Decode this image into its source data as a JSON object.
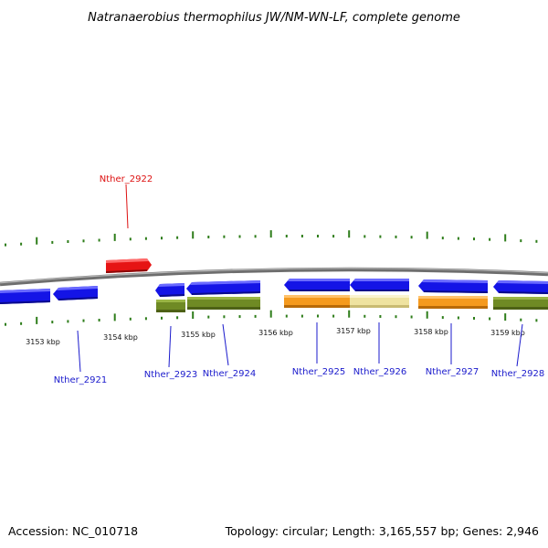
{
  "title": "Natranaerobius thermophilus JW/NM-WN-LF, complete genome",
  "footer": {
    "accession": "Accession: NC_010718",
    "summary": "Topology: circular; Length: 3,165,557 bp; Genes: 2,946"
  },
  "colors": {
    "backbone": "#7a7a7a",
    "tick": "#2e7d1a",
    "label_blue": "#1a1acc",
    "label_red": "#dd1111",
    "gene_blue": "#1414e6",
    "gene_red": "#e61414",
    "gene_orange": "#f59a1e",
    "gene_yellow": "#efe3a0",
    "gene_olive": "#6f8a24"
  },
  "ruler_labels": [
    "3153 kbp",
    "3154 kbp",
    "3155 kbp",
    "3156 kbp",
    "3157 kbp",
    "3158 kbp",
    "3159 kbp"
  ],
  "gene_labels": [
    {
      "text": "Nther_2922",
      "color": "red"
    },
    {
      "text": "Nther_2921",
      "color": "blue"
    },
    {
      "text": "Nther_2923",
      "color": "blue"
    },
    {
      "text": "Nther_2924",
      "color": "blue"
    },
    {
      "text": "Nther_2925",
      "color": "blue"
    },
    {
      "text": "Nther_2926",
      "color": "blue"
    },
    {
      "text": "Nther_2927",
      "color": "blue"
    },
    {
      "text": "Nther_2928",
      "color": "blue"
    }
  ]
}
